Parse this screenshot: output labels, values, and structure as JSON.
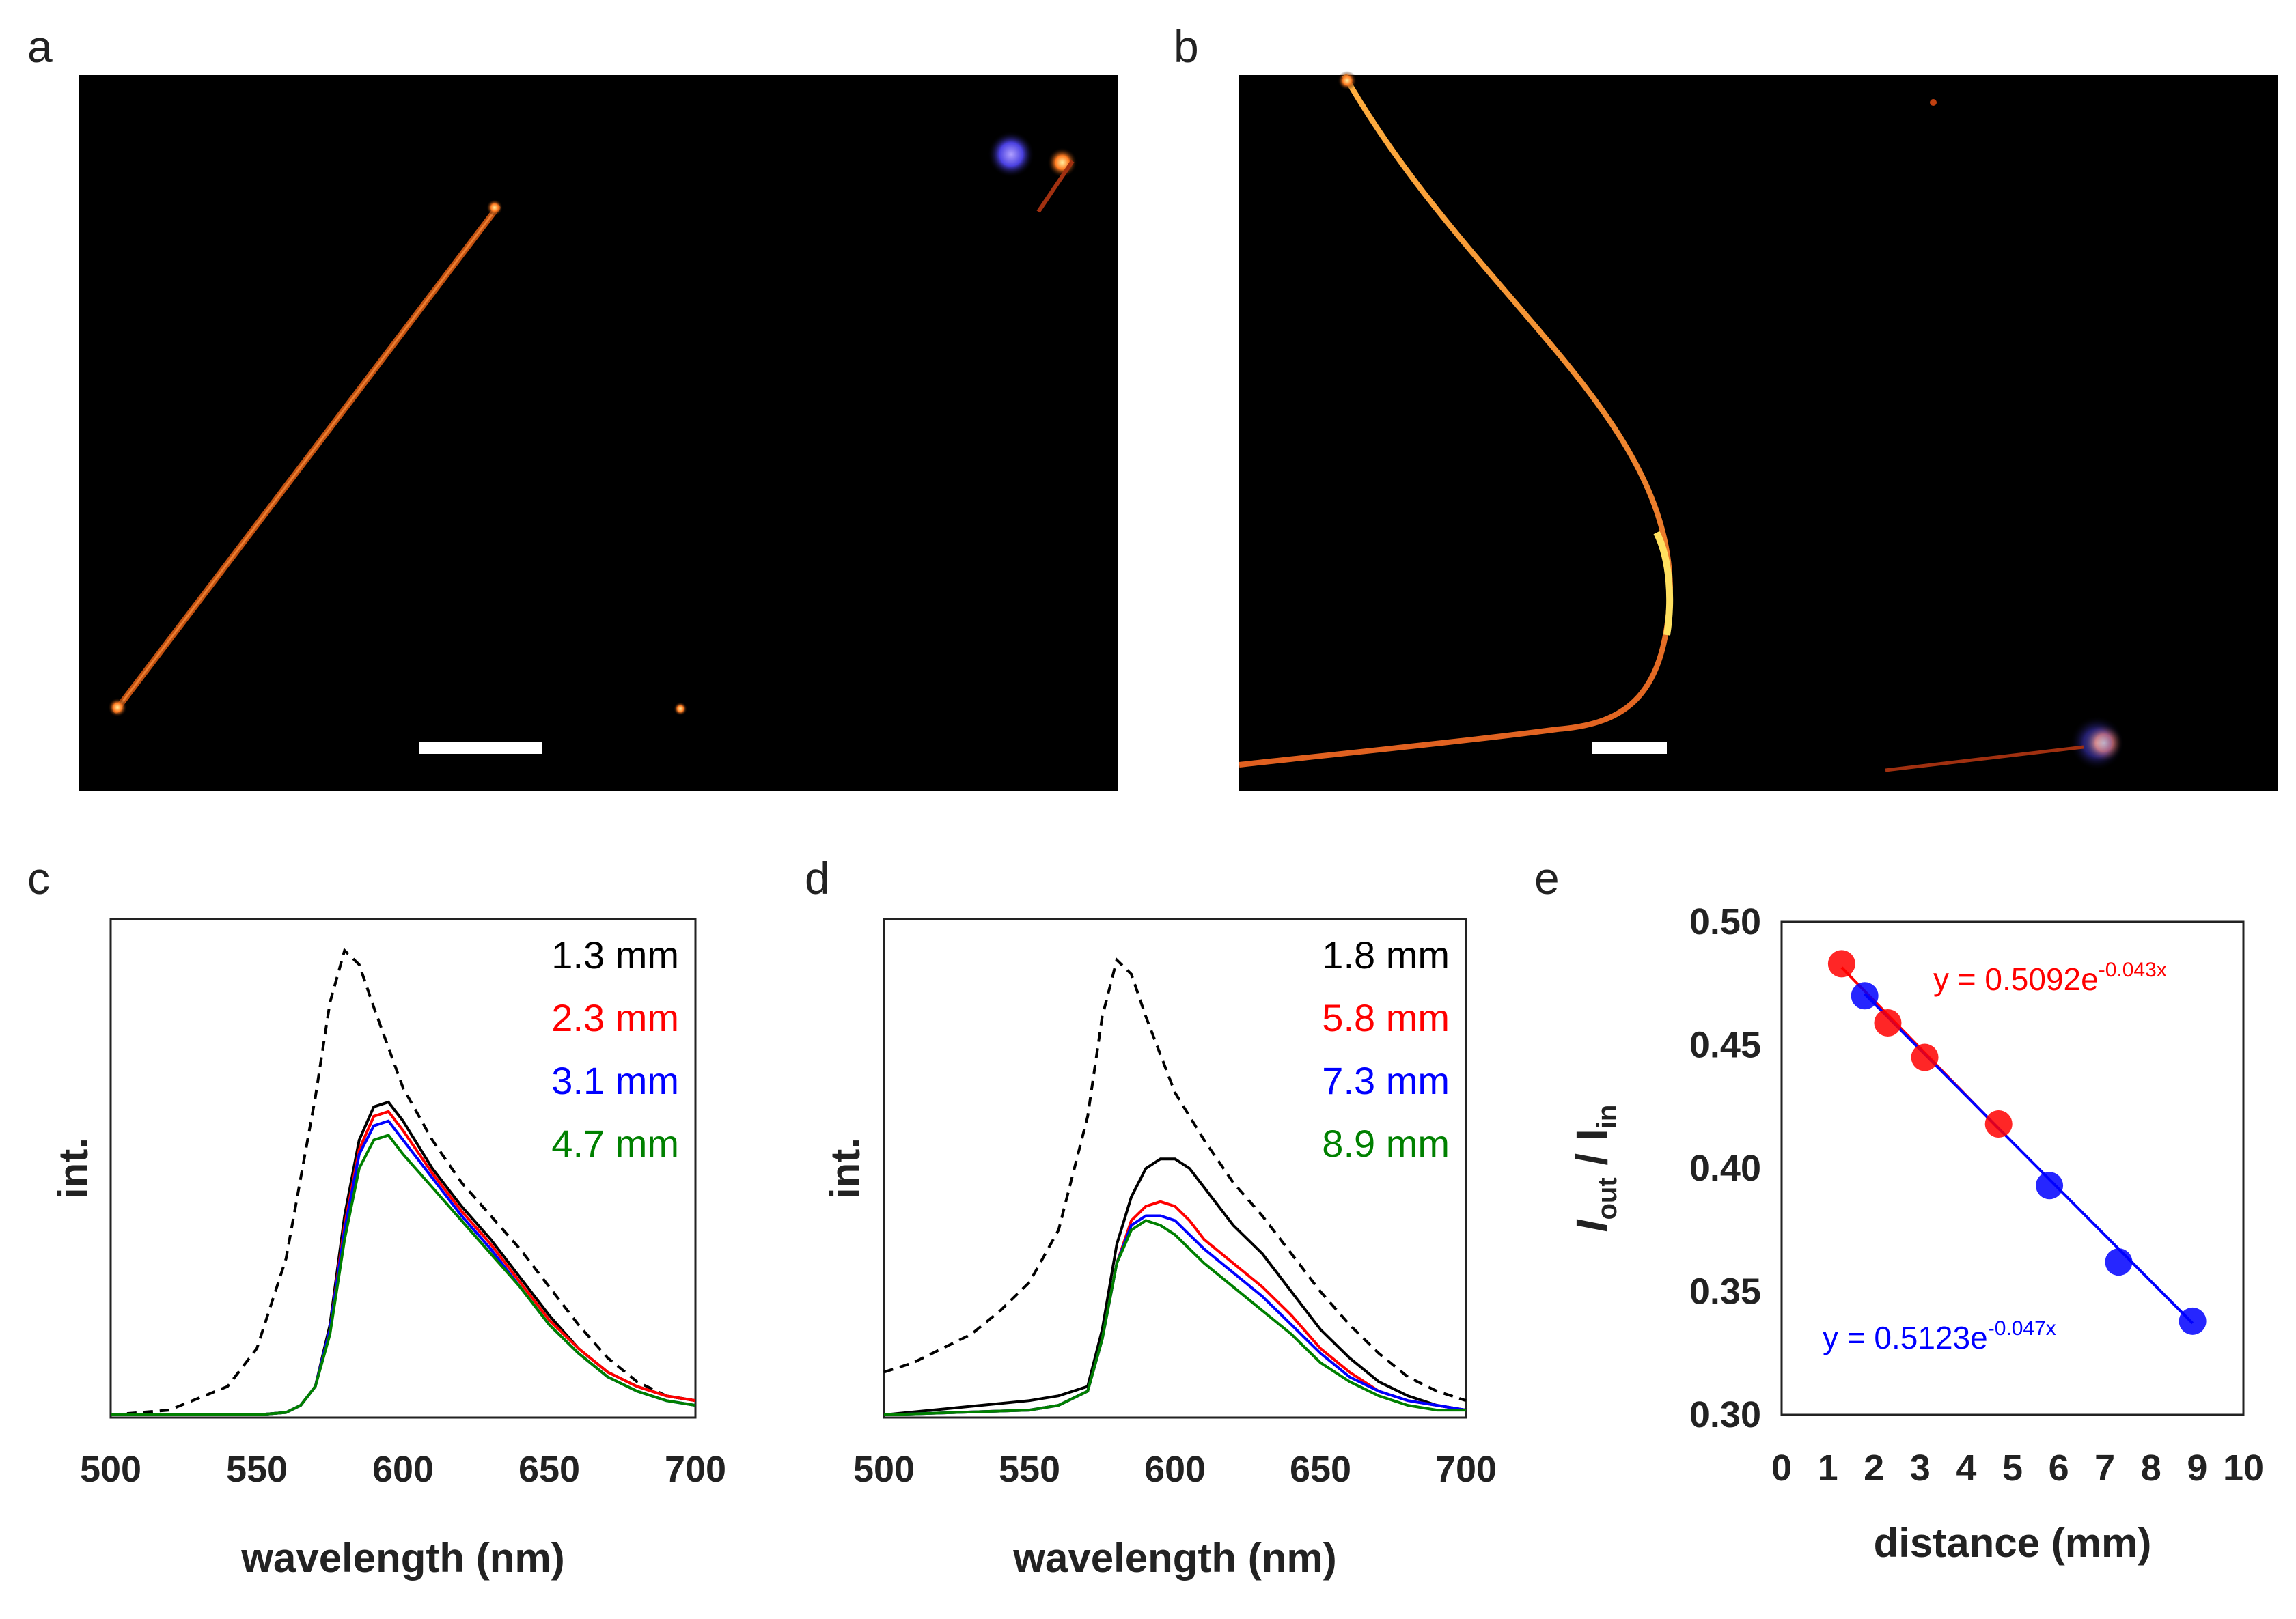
{
  "panel_labels": {
    "a": "a",
    "b": "b",
    "c": "c",
    "d": "d",
    "e": "e"
  },
  "chart_data": [
    {
      "panel": "c",
      "type": "line",
      "xlabel": "wavelength (nm)",
      "ylabel": "int.",
      "xlim": [
        500,
        700
      ],
      "xticks": [
        500,
        550,
        600,
        650,
        700
      ],
      "series": [
        {
          "color": "#000000",
          "dash": true,
          "x": [
            500,
            520,
            540,
            550,
            560,
            570,
            575,
            580,
            585,
            590,
            600,
            610,
            620,
            630,
            640,
            650,
            660,
            670,
            680,
            690,
            700
          ],
          "y": [
            0.0,
            0.01,
            0.06,
            0.14,
            0.33,
            0.67,
            0.87,
            0.98,
            0.95,
            0.86,
            0.69,
            0.58,
            0.49,
            0.42,
            0.35,
            0.27,
            0.19,
            0.12,
            0.07,
            0.04,
            0.03
          ]
        },
        {
          "name": "1.3 mm",
          "color": "#000000",
          "x": [
            500,
            550,
            560,
            565,
            570,
            575,
            580,
            585,
            590,
            595,
            600,
            610,
            620,
            630,
            640,
            650,
            660,
            670,
            680,
            690,
            700
          ],
          "y": [
            0,
            0,
            0.005,
            0.02,
            0.06,
            0.19,
            0.42,
            0.58,
            0.65,
            0.66,
            0.62,
            0.52,
            0.44,
            0.37,
            0.29,
            0.21,
            0.14,
            0.09,
            0.06,
            0.04,
            0.03
          ]
        },
        {
          "name": "2.3 mm",
          "color": "#ff0000",
          "x": [
            500,
            550,
            560,
            565,
            570,
            575,
            580,
            585,
            590,
            595,
            600,
            610,
            620,
            630,
            640,
            650,
            660,
            670,
            680,
            690,
            700
          ],
          "y": [
            0,
            0,
            0.005,
            0.02,
            0.06,
            0.18,
            0.4,
            0.56,
            0.63,
            0.64,
            0.6,
            0.51,
            0.43,
            0.36,
            0.28,
            0.2,
            0.14,
            0.09,
            0.06,
            0.04,
            0.03
          ]
        },
        {
          "name": "3.1 mm",
          "color": "#0000ff",
          "x": [
            500,
            550,
            560,
            565,
            570,
            575,
            580,
            585,
            590,
            595,
            600,
            610,
            620,
            630,
            640,
            650,
            660,
            670,
            680,
            690,
            700
          ],
          "y": [
            0,
            0,
            0.005,
            0.02,
            0.06,
            0.18,
            0.39,
            0.55,
            0.61,
            0.62,
            0.58,
            0.5,
            0.42,
            0.35,
            0.27,
            0.19,
            0.13,
            0.08,
            0.05,
            0.03,
            0.02
          ]
        },
        {
          "name": "4.7 mm",
          "color": "#008000",
          "x": [
            500,
            550,
            560,
            565,
            570,
            575,
            580,
            585,
            590,
            595,
            600,
            610,
            620,
            630,
            640,
            650,
            660,
            670,
            680,
            690,
            700
          ],
          "y": [
            0,
            0,
            0.005,
            0.02,
            0.06,
            0.17,
            0.37,
            0.52,
            0.58,
            0.59,
            0.55,
            0.48,
            0.41,
            0.34,
            0.27,
            0.19,
            0.13,
            0.08,
            0.05,
            0.03,
            0.02
          ]
        }
      ]
    },
    {
      "panel": "d",
      "type": "line",
      "xlabel": "wavelength (nm)",
      "ylabel": "int.",
      "xlim": [
        500,
        700
      ],
      "xticks": [
        500,
        550,
        600,
        650,
        700
      ],
      "series": [
        {
          "color": "#000000",
          "dash": true,
          "x": [
            500,
            510,
            520,
            530,
            540,
            550,
            560,
            570,
            575,
            580,
            585,
            590,
            600,
            610,
            620,
            630,
            640,
            650,
            660,
            670,
            680,
            690,
            700
          ],
          "y": [
            0.09,
            0.11,
            0.14,
            0.17,
            0.22,
            0.28,
            0.39,
            0.63,
            0.84,
            0.96,
            0.93,
            0.84,
            0.68,
            0.58,
            0.49,
            0.42,
            0.34,
            0.26,
            0.19,
            0.13,
            0.08,
            0.05,
            0.03
          ]
        },
        {
          "name": "1.8 mm",
          "color": "#000000",
          "x": [
            500,
            550,
            560,
            570,
            575,
            580,
            585,
            590,
            595,
            600,
            605,
            610,
            620,
            630,
            640,
            650,
            660,
            670,
            680,
            690,
            700
          ],
          "y": [
            0,
            0.03,
            0.04,
            0.06,
            0.18,
            0.36,
            0.46,
            0.52,
            0.54,
            0.54,
            0.52,
            0.48,
            0.4,
            0.34,
            0.26,
            0.18,
            0.12,
            0.07,
            0.04,
            0.02,
            0.01
          ]
        },
        {
          "name": "5.8 mm",
          "color": "#ff0000",
          "x": [
            500,
            550,
            560,
            570,
            575,
            580,
            585,
            590,
            595,
            600,
            605,
            610,
            620,
            630,
            640,
            650,
            660,
            670,
            680,
            690,
            700
          ],
          "y": [
            0,
            0.01,
            0.02,
            0.05,
            0.16,
            0.32,
            0.41,
            0.44,
            0.45,
            0.44,
            0.41,
            0.37,
            0.32,
            0.27,
            0.21,
            0.14,
            0.09,
            0.05,
            0.03,
            0.02,
            0.01
          ]
        },
        {
          "name": "7.3 mm",
          "color": "#0000ff",
          "x": [
            500,
            550,
            560,
            570,
            575,
            580,
            585,
            590,
            595,
            600,
            605,
            610,
            620,
            630,
            640,
            650,
            660,
            670,
            680,
            690,
            700
          ],
          "y": [
            0,
            0.01,
            0.02,
            0.05,
            0.16,
            0.32,
            0.4,
            0.42,
            0.42,
            0.41,
            0.38,
            0.35,
            0.3,
            0.25,
            0.19,
            0.13,
            0.08,
            0.05,
            0.03,
            0.02,
            0.01
          ]
        },
        {
          "name": "8.9 mm",
          "color": "#008000",
          "x": [
            500,
            550,
            560,
            570,
            575,
            580,
            585,
            590,
            595,
            600,
            605,
            610,
            620,
            630,
            640,
            650,
            660,
            670,
            680,
            690,
            700
          ],
          "y": [
            0,
            0.01,
            0.02,
            0.05,
            0.16,
            0.32,
            0.39,
            0.41,
            0.4,
            0.38,
            0.35,
            0.32,
            0.27,
            0.22,
            0.17,
            0.11,
            0.07,
            0.04,
            0.02,
            0.01,
            0.01
          ]
        }
      ]
    },
    {
      "panel": "e",
      "type": "scatter",
      "xlabel": "distance (mm)",
      "ylabel": "I",
      "ylabel_sub1": "out",
      "ylabel_mid": " / I",
      "ylabel_sub2": "in",
      "xlim": [
        0,
        10
      ],
      "ylim": [
        0.3,
        0.5
      ],
      "xticks": [
        0,
        1,
        2,
        3,
        4,
        5,
        6,
        7,
        8,
        9,
        10
      ],
      "yticks": [
        "0.30",
        "0.35",
        "0.40",
        "0.45",
        "0.50"
      ],
      "series": [
        {
          "color": "#ff0000",
          "x": [
            1.3,
            2.3,
            3.1,
            4.7
          ],
          "y": [
            0.483,
            0.459,
            0.445,
            0.418
          ],
          "fit": {
            "a": 0.5092,
            "b": -0.043,
            "label": "y = 0.5092e",
            "exp": "-0.043x"
          }
        },
        {
          "color": "#0000ff",
          "x": [
            1.8,
            5.8,
            7.3,
            8.9
          ],
          "y": [
            0.47,
            0.393,
            0.362,
            0.338
          ],
          "fit": {
            "a": 0.5123,
            "b": -0.047,
            "label": "y = 0.5123e",
            "exp": "-0.047x"
          }
        }
      ]
    }
  ]
}
